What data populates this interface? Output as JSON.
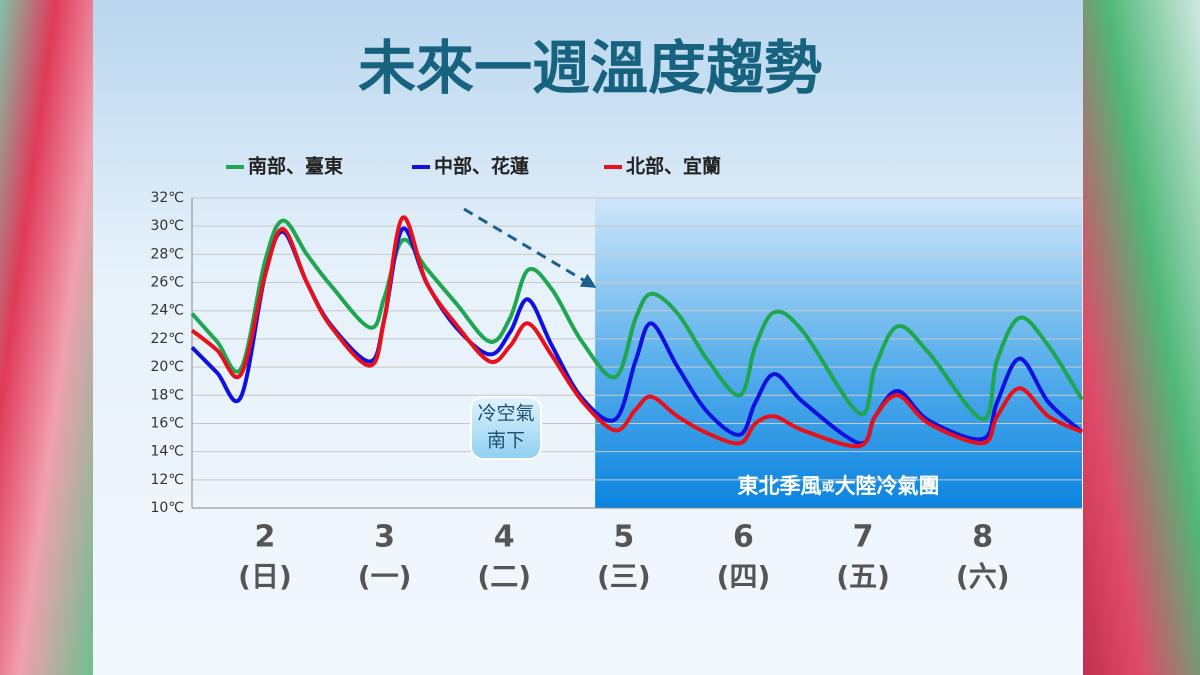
{
  "chart_data": {
    "type": "line",
    "title": "未來一週溫度趨勢",
    "x": [
      1.39,
      1.6,
      1.8,
      2.0,
      2.15,
      2.35,
      2.55,
      2.88,
      3.0,
      3.15,
      3.35,
      3.6,
      3.88,
      4.05,
      4.2,
      4.4,
      4.65,
      4.93,
      5.1,
      5.23,
      5.45,
      5.7,
      5.97,
      6.1,
      6.26,
      6.5,
      6.97,
      7.1,
      7.29,
      7.55,
      8.0,
      8.12,
      8.31,
      8.55,
      8.83
    ],
    "series": [
      {
        "name": "南部、臺東",
        "color": "#1fa650",
        "values": [
          23.8,
          21.8,
          19.9,
          27.5,
          30.4,
          28.0,
          25.8,
          22.8,
          25.0,
          29.0,
          27.0,
          24.5,
          21.8,
          23.5,
          26.9,
          25.5,
          21.8,
          19.3,
          23.5,
          25.2,
          23.8,
          20.5,
          18.0,
          21.5,
          23.9,
          22.5,
          16.7,
          20.0,
          22.9,
          21.0,
          16.3,
          20.5,
          23.5,
          21.5,
          17.7
        ]
      },
      {
        "name": "中部、花蓮",
        "color": "#1010e0",
        "values": [
          21.4,
          19.6,
          17.9,
          26.5,
          29.6,
          26.0,
          23.0,
          20.4,
          23.5,
          29.8,
          26.0,
          22.8,
          20.9,
          22.5,
          24.8,
          21.5,
          17.8,
          16.3,
          20.5,
          23.1,
          20.0,
          16.8,
          15.2,
          17.5,
          19.5,
          17.5,
          14.6,
          16.5,
          18.3,
          16.2,
          14.9,
          17.5,
          20.6,
          17.5,
          15.4
        ]
      },
      {
        "name": "北部、宜蘭",
        "color": "#e8101a",
        "values": [
          22.6,
          21.2,
          19.5,
          26.5,
          29.8,
          26.0,
          22.9,
          20.1,
          23.5,
          30.6,
          26.0,
          23.0,
          20.4,
          21.5,
          23.1,
          20.8,
          17.6,
          15.5,
          17.0,
          17.9,
          16.5,
          15.3,
          14.6,
          16.0,
          16.5,
          15.5,
          14.4,
          16.5,
          18.0,
          16.0,
          14.6,
          16.5,
          18.5,
          16.5,
          15.4
        ]
      }
    ],
    "xlim": [
      1.39,
      8.83
    ],
    "xticks": [
      2,
      3,
      4,
      5,
      6,
      7,
      8
    ],
    "xtick_weekdays": [
      "(日)",
      "(一)",
      "(二)",
      "(三)",
      "(四)",
      "(五)",
      "(六)"
    ],
    "ylim": [
      10,
      32
    ],
    "yticks": [
      {
        "value": 10,
        "label": "10℃"
      },
      {
        "value": 12,
        "label": "12℃"
      },
      {
        "value": 14,
        "label": "14℃"
      },
      {
        "value": 16,
        "label": "16℃"
      },
      {
        "value": 18,
        "label": "18℃"
      },
      {
        "value": 20,
        "label": "20℃"
      },
      {
        "value": 22,
        "label": "22℃"
      },
      {
        "value": 24,
        "label": "24℃"
      },
      {
        "value": 26,
        "label": "26℃"
      },
      {
        "value": 28,
        "label": "28℃"
      },
      {
        "value": 30,
        "label": "30℃"
      },
      {
        "value": 32,
        "label": "32℃"
      }
    ],
    "grid": true,
    "cold_region": {
      "xrange": [
        4.76,
        8.83
      ],
      "label_parts": [
        "東北季風",
        "或",
        "大陸冷氣團"
      ]
    },
    "annotation": [
      "冷空氣",
      "南下"
    ]
  }
}
